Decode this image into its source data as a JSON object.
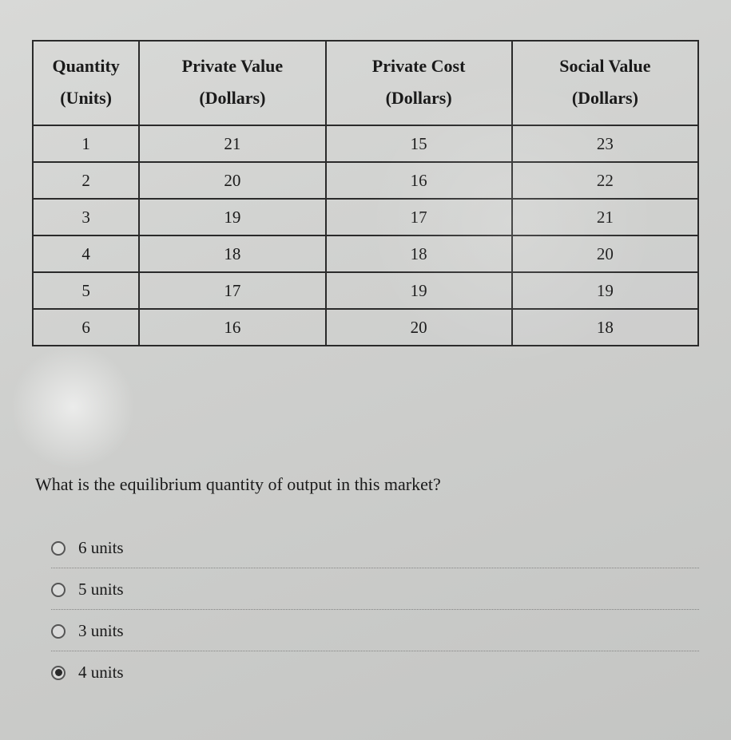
{
  "table": {
    "columns": [
      {
        "line1": "Quantity",
        "line2": "(Units)"
      },
      {
        "line1": "Private Value",
        "line2": "(Dollars)"
      },
      {
        "line1": "Private Cost",
        "line2": "(Dollars)"
      },
      {
        "line1": "Social Value",
        "line2": "(Dollars)"
      }
    ],
    "rows": [
      {
        "qty": "1",
        "pv": "21",
        "pc": "15",
        "sv": "23"
      },
      {
        "qty": "2",
        "pv": "20",
        "pc": "16",
        "sv": "22"
      },
      {
        "qty": "3",
        "pv": "19",
        "pc": "17",
        "sv": "21"
      },
      {
        "qty": "4",
        "pv": "18",
        "pc": "18",
        "sv": "20"
      },
      {
        "qty": "5",
        "pv": "17",
        "pc": "19",
        "sv": "19"
      },
      {
        "qty": "6",
        "pv": "16",
        "pc": "20",
        "sv": "18"
      }
    ],
    "border_color": "#2a2a2a",
    "header_fontsize": 22,
    "cell_fontsize": 21,
    "col_widths_pct": [
      16,
      28,
      28,
      28
    ]
  },
  "question": {
    "text": "What is the equilibrium quantity of output in this market?",
    "fontsize": 22
  },
  "options": [
    {
      "label": "6 units",
      "selected": false
    },
    {
      "label": "5 units",
      "selected": false
    },
    {
      "label": "3 units",
      "selected": false
    },
    {
      "label": "4 units",
      "selected": true
    }
  ],
  "colors": {
    "background_top": "#d8d9d7",
    "background_bottom": "#c4c5c3",
    "text": "#1a1a1a",
    "divider": "rgba(60,60,60,0.5)",
    "radio_border": "#555555",
    "radio_fill": "#2a2a2a"
  }
}
